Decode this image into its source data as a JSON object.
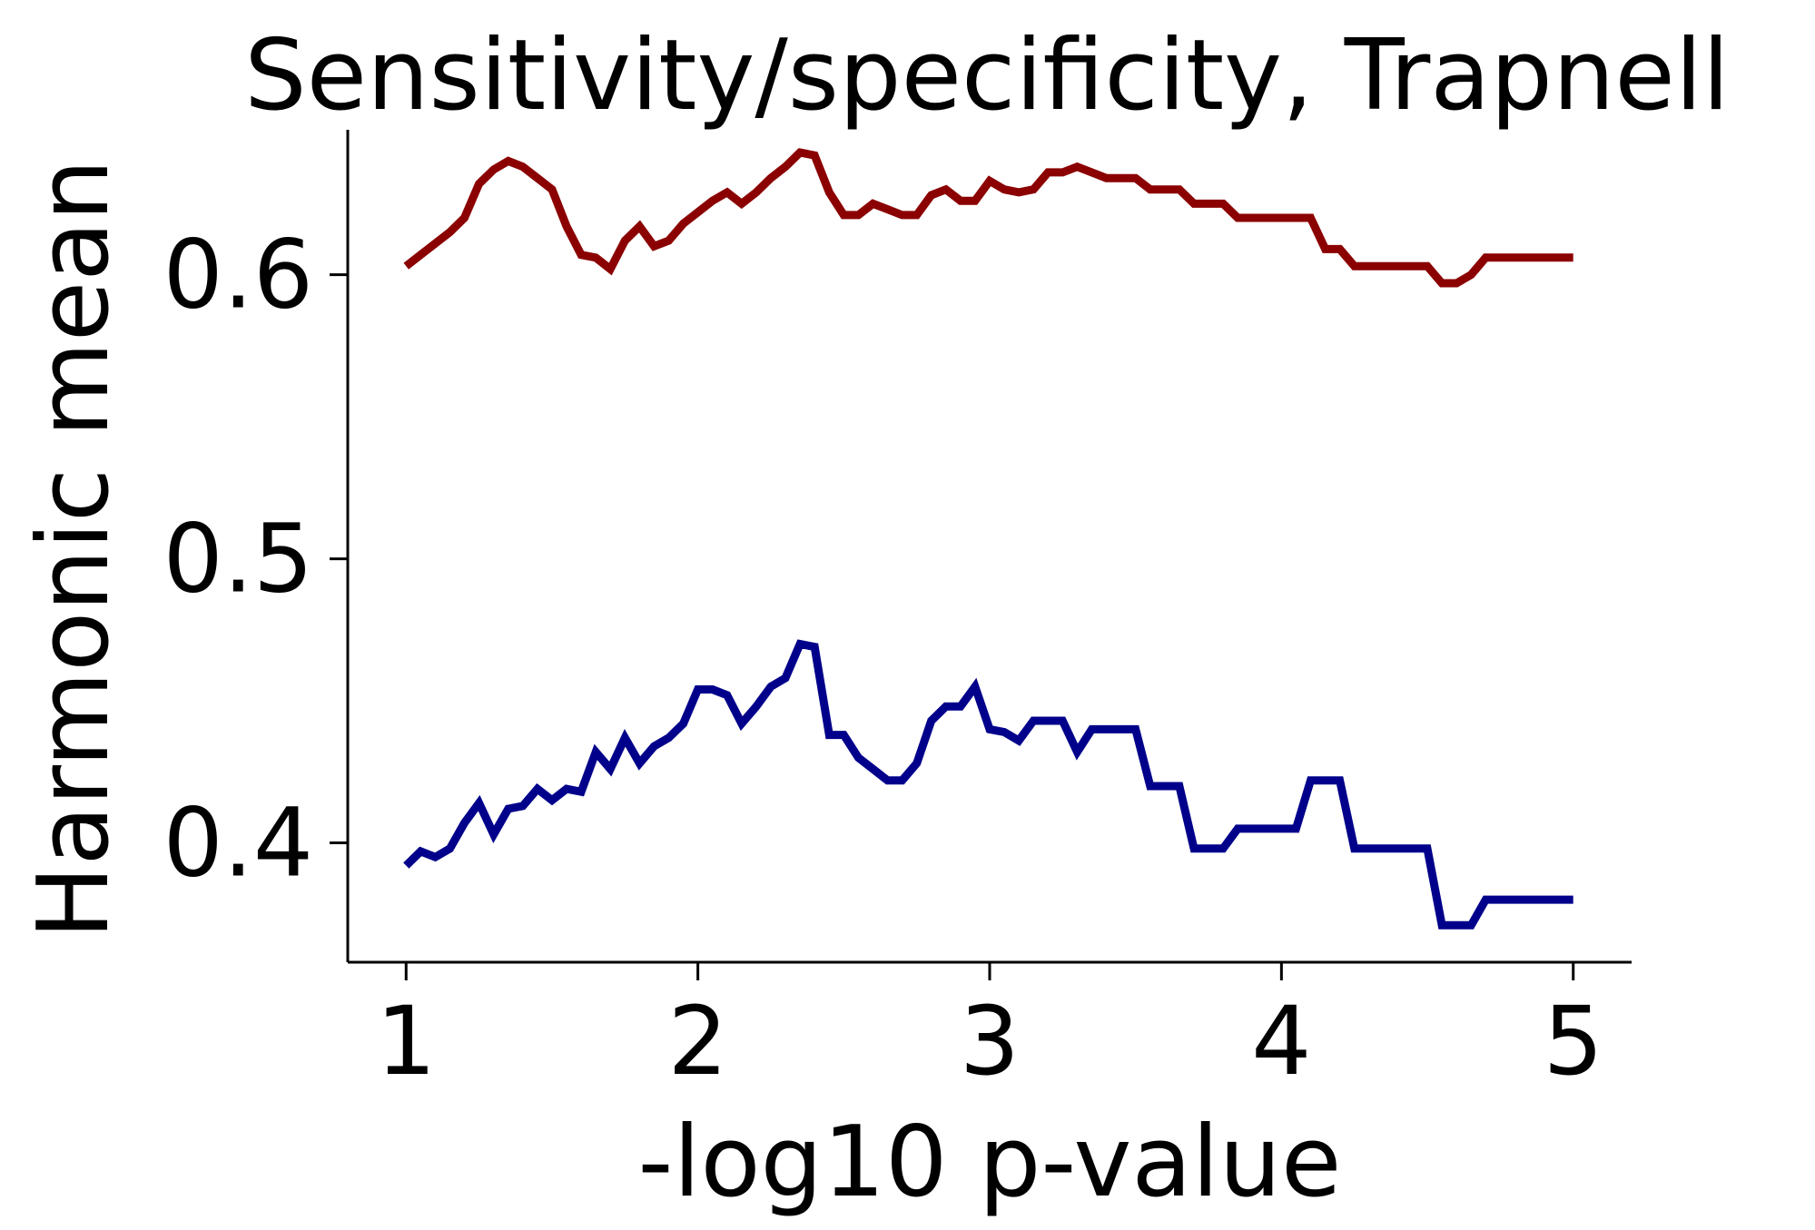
{
  "chart_data": {
    "type": "line",
    "title": "Sensitivity/specificity, Trapnell",
    "xlabel": "-log10 p-value",
    "ylabel": "Harmonic mean",
    "xlim": [
      0.8,
      5.2
    ],
    "ylim": [
      0.358,
      0.651
    ],
    "xticks": [
      1,
      2,
      3,
      4,
      5
    ],
    "yticks": [
      0.4,
      0.5,
      0.6
    ],
    "xtick_labels": [
      "1",
      "2",
      "3",
      "4",
      "5"
    ],
    "ytick_labels": [
      "0.4",
      "0.5",
      "0.6"
    ],
    "grid": false,
    "legend": false,
    "colors": {
      "red": "#8b0000",
      "blue": "#00008b",
      "axis": "#000000"
    },
    "series": [
      {
        "color": "#8b0000",
        "x": [
          1.0,
          1.05,
          1.1,
          1.15,
          1.2,
          1.25,
          1.3,
          1.35,
          1.4,
          1.45,
          1.5,
          1.55,
          1.6,
          1.65,
          1.7,
          1.75,
          1.8,
          1.85,
          1.9,
          1.95,
          2.0,
          2.05,
          2.1,
          2.15,
          2.2,
          2.25,
          2.3,
          2.35,
          2.4,
          2.45,
          2.5,
          2.55,
          2.6,
          2.65,
          2.7,
          2.75,
          2.8,
          2.85,
          2.9,
          2.95,
          3.0,
          3.05,
          3.1,
          3.15,
          3.2,
          3.25,
          3.3,
          3.35,
          3.4,
          3.45,
          3.5,
          3.55,
          3.6,
          3.65,
          3.7,
          3.75,
          3.8,
          3.85,
          3.9,
          3.95,
          4.0,
          4.05,
          4.1,
          4.15,
          4.2,
          4.25,
          4.3,
          4.35,
          4.4,
          4.45,
          4.5,
          4.55,
          4.6,
          4.65,
          4.7,
          4.75,
          4.8,
          4.85,
          4.9,
          4.95,
          5.0
        ],
        "y": [
          0.603,
          0.607,
          0.611,
          0.615,
          0.62,
          0.632,
          0.637,
          0.64,
          0.638,
          0.634,
          0.63,
          0.617,
          0.607,
          0.606,
          0.602,
          0.612,
          0.617,
          0.61,
          0.612,
          0.618,
          0.622,
          0.626,
          0.629,
          0.625,
          0.629,
          0.634,
          0.638,
          0.643,
          0.642,
          0.629,
          0.621,
          0.621,
          0.625,
          0.623,
          0.621,
          0.621,
          0.628,
          0.63,
          0.626,
          0.626,
          0.633,
          0.63,
          0.629,
          0.63,
          0.636,
          0.636,
          0.638,
          0.636,
          0.634,
          0.634,
          0.634,
          0.63,
          0.63,
          0.63,
          0.625,
          0.625,
          0.625,
          0.62,
          0.62,
          0.62,
          0.62,
          0.62,
          0.62,
          0.609,
          0.609,
          0.603,
          0.603,
          0.603,
          0.603,
          0.603,
          0.603,
          0.597,
          0.597,
          0.6,
          0.606,
          0.606,
          0.606,
          0.606,
          0.606,
          0.606,
          0.606
        ]
      },
      {
        "color": "#00008b",
        "x": [
          1.0,
          1.05,
          1.1,
          1.15,
          1.2,
          1.25,
          1.3,
          1.35,
          1.4,
          1.45,
          1.5,
          1.55,
          1.6,
          1.65,
          1.7,
          1.75,
          1.8,
          1.85,
          1.9,
          1.95,
          2.0,
          2.05,
          2.1,
          2.15,
          2.2,
          2.25,
          2.3,
          2.35,
          2.4,
          2.45,
          2.5,
          2.55,
          2.6,
          2.65,
          2.7,
          2.75,
          2.8,
          2.85,
          2.9,
          2.95,
          3.0,
          3.05,
          3.1,
          3.15,
          3.2,
          3.25,
          3.3,
          3.35,
          3.4,
          3.45,
          3.5,
          3.55,
          3.6,
          3.65,
          3.7,
          3.75,
          3.8,
          3.85,
          3.9,
          3.95,
          4.0,
          4.05,
          4.1,
          4.15,
          4.2,
          4.25,
          4.3,
          4.35,
          4.4,
          4.45,
          4.5,
          4.55,
          4.6,
          4.65,
          4.7,
          4.75,
          4.8,
          4.85,
          4.9,
          4.95,
          5.0
        ],
        "y": [
          0.392,
          0.397,
          0.395,
          0.398,
          0.407,
          0.414,
          0.403,
          0.412,
          0.413,
          0.419,
          0.415,
          0.419,
          0.418,
          0.432,
          0.426,
          0.437,
          0.428,
          0.434,
          0.437,
          0.442,
          0.454,
          0.454,
          0.452,
          0.442,
          0.448,
          0.455,
          0.458,
          0.47,
          0.469,
          0.438,
          0.438,
          0.43,
          0.426,
          0.422,
          0.422,
          0.428,
          0.443,
          0.448,
          0.448,
          0.455,
          0.44,
          0.439,
          0.436,
          0.443,
          0.443,
          0.443,
          0.432,
          0.44,
          0.44,
          0.44,
          0.44,
          0.42,
          0.42,
          0.42,
          0.398,
          0.398,
          0.398,
          0.405,
          0.405,
          0.405,
          0.405,
          0.405,
          0.422,
          0.422,
          0.422,
          0.398,
          0.398,
          0.398,
          0.398,
          0.398,
          0.398,
          0.371,
          0.371,
          0.371,
          0.38,
          0.38,
          0.38,
          0.38,
          0.38,
          0.38,
          0.38
        ]
      }
    ]
  }
}
